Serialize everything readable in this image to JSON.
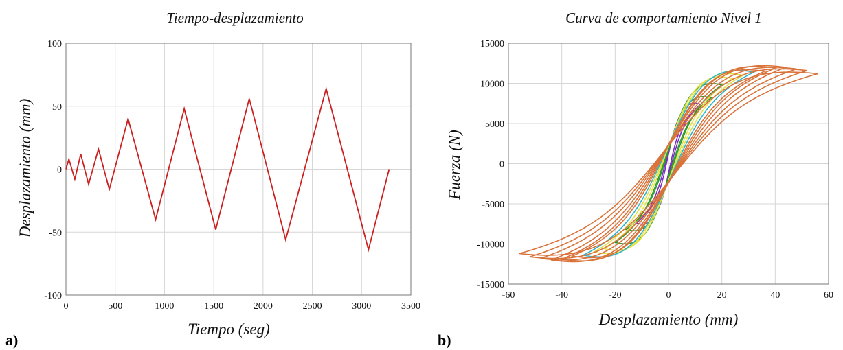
{
  "chart_data": [
    {
      "type": "line",
      "panel_label": "a)",
      "title": "Tiempo-desplazamiento",
      "xlabel": "Tiempo (seg)",
      "ylabel": "Desplazamiento  (mm)",
      "xlim": [
        0,
        3500
      ],
      "ylim": [
        -100,
        100
      ],
      "xticks": [
        0,
        500,
        1000,
        1500,
        2000,
        2500,
        3000,
        3500
      ],
      "yticks": [
        -100,
        -50,
        0,
        50,
        100
      ],
      "grid": true,
      "series": [
        {
          "color": "#cc1f1f",
          "x": [
            0,
            30,
            90,
            150,
            230,
            330,
            440,
            630,
            910,
            1200,
            1520,
            1860,
            2230,
            2640,
            3070,
            3280
          ],
          "y": [
            0,
            8,
            -8,
            12,
            -12,
            16,
            -16,
            40,
            -40,
            48,
            -48,
            56,
            -56,
            64,
            -64,
            0
          ]
        }
      ]
    },
    {
      "type": "line",
      "panel_label": "b)",
      "title": "Curva de comportamiento Nivel 1",
      "xlabel": "Desplazamiento  (mm)",
      "ylabel": "Fuerza  (N)",
      "xlim": [
        -60,
        60
      ],
      "ylim": [
        -15000,
        15000
      ],
      "xticks": [
        -60,
        -40,
        -20,
        0,
        20,
        40,
        60
      ],
      "yticks": [
        -15000,
        -10000,
        -5000,
        0,
        5000,
        10000,
        15000
      ],
      "grid": true,
      "series": [
        {
          "color": "#7b2fbe",
          "cycles": [
            {
              "d": 8,
              "f": 6000
            },
            {
              "d": 12,
              "f": 7400
            }
          ]
        },
        {
          "color": "#2d9c2d",
          "cycles": [
            {
              "d": 16,
              "f": 8200
            },
            {
              "d": 20,
              "f": 9800
            }
          ]
        },
        {
          "color": "#e4e04a",
          "cycles": [
            {
              "d": 24,
              "f": 10600
            },
            {
              "d": 28,
              "f": 11000
            }
          ]
        },
        {
          "color": "#2ab5c9",
          "cycles": [
            {
              "d": 32,
              "f": 11400
            }
          ]
        },
        {
          "color": "#d9733a",
          "cycles": [
            {
              "d": 36,
              "f": 11500
            },
            {
              "d": 40,
              "f": 11900
            },
            {
              "d": 44,
              "f": 12000
            },
            {
              "d": 48,
              "f": 11800
            },
            {
              "d": 52,
              "f": 11600
            },
            {
              "d": 56,
              "f": 11200
            }
          ]
        }
      ]
    }
  ]
}
